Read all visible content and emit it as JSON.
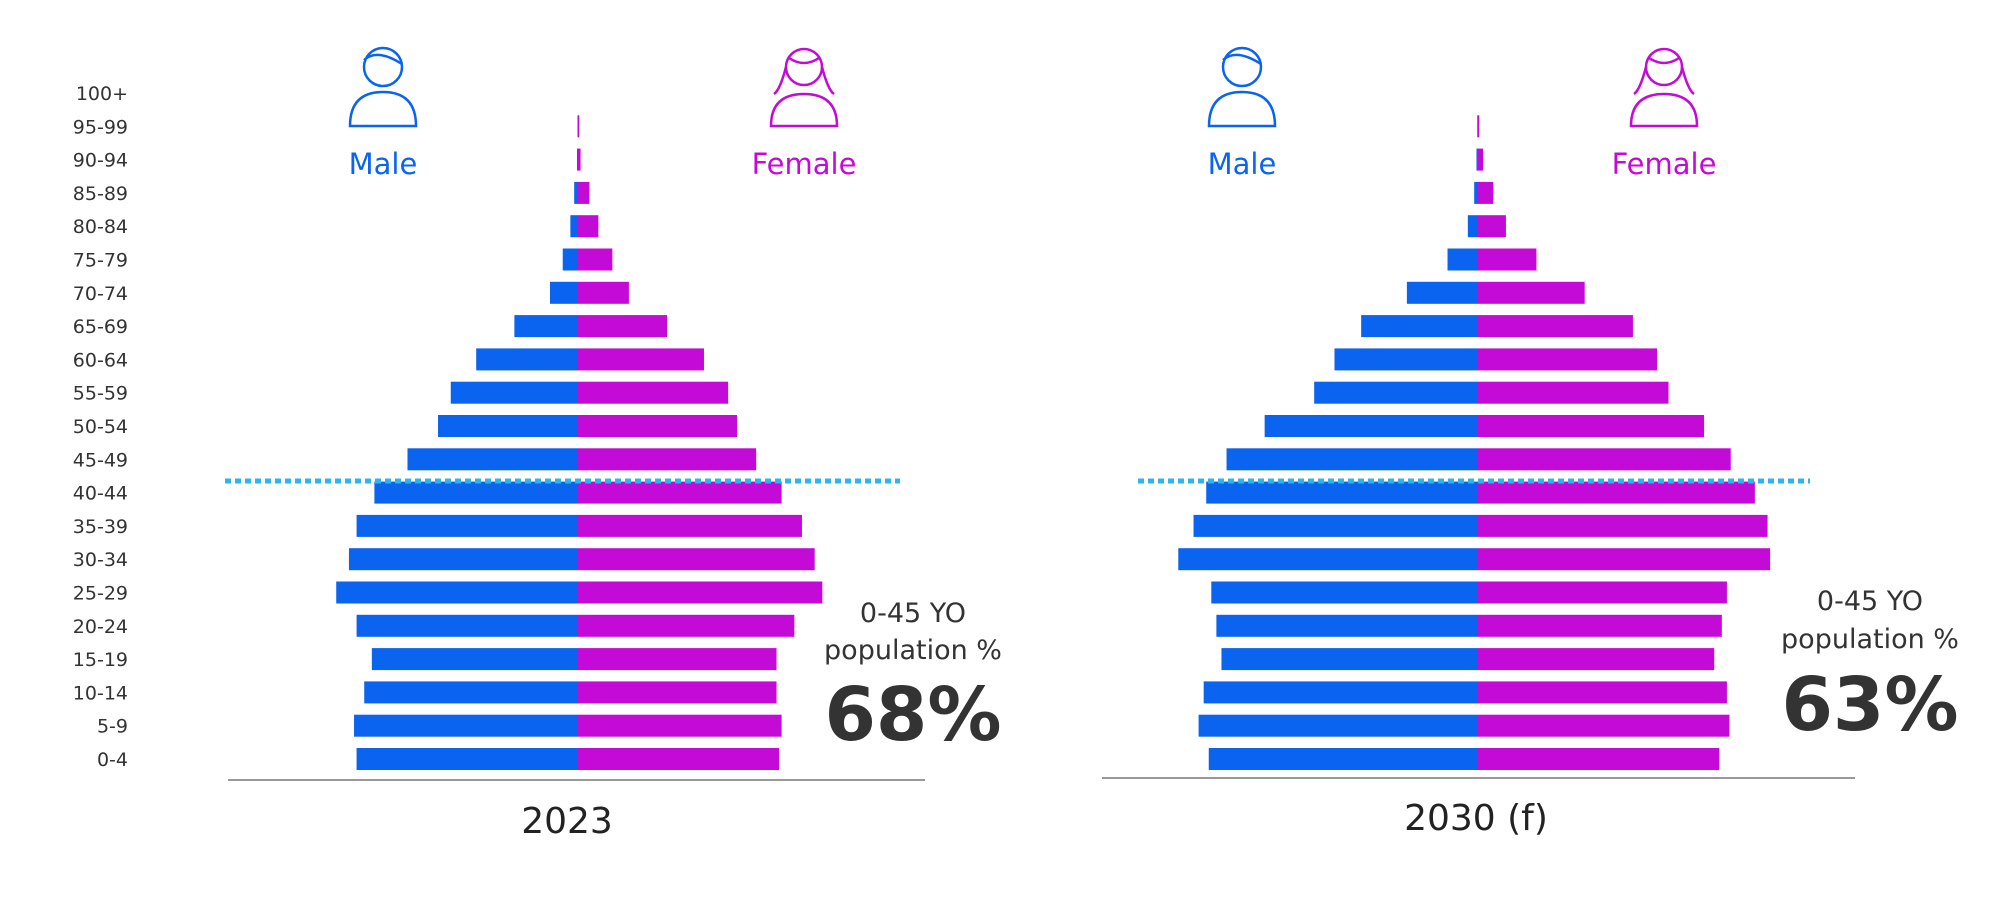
{
  "colors": {
    "male": "#0a64f0",
    "female": "#c40ad6",
    "cutoff_line": "#2bb6ee",
    "baseline": "#999999",
    "text": "#333333"
  },
  "age_groups": [
    "100+",
    "95-99",
    "90-94",
    "85-89",
    "80-84",
    "75-79",
    "70-74",
    "65-69",
    "60-64",
    "55-59",
    "50-54",
    "45-49",
    "40-44",
    "35-39",
    "30-34",
    "25-29",
    "20-24",
    "15-19",
    "10-14",
    "5-9",
    "0-4"
  ],
  "legend": {
    "male": "Male",
    "female": "Female"
  },
  "chart_data": [
    {
      "type": "bar",
      "subtype": "population-pyramid",
      "title": "2023",
      "categories": [
        "100+",
        "95-99",
        "90-94",
        "85-89",
        "80-84",
        "75-79",
        "70-74",
        "65-69",
        "60-64",
        "55-59",
        "50-54",
        "45-49",
        "40-44",
        "35-39",
        "30-34",
        "25-29",
        "20-24",
        "15-19",
        "10-14",
        "5-9",
        "0-4"
      ],
      "series": [
        {
          "name": "Male",
          "values": [
            0,
            0.2,
            0.4,
            1.5,
            3,
            6,
            11,
            25,
            40,
            50,
            55,
            67,
            80,
            87,
            90,
            95,
            87,
            81,
            84,
            88,
            87
          ]
        },
        {
          "name": "Female",
          "values": [
            0,
            0.5,
            1,
            4.5,
            8,
            13.5,
            20,
            35,
            49.5,
            59,
            62.5,
            70,
            80,
            88,
            93,
            96,
            85,
            78,
            78,
            80,
            79
          ]
        }
      ],
      "reference_line": {
        "age_group": "40-44"
      },
      "annotation": {
        "line1": "0-45 YO",
        "line2": "population %",
        "value": "68%"
      },
      "xlim": [
        -100,
        100
      ]
    },
    {
      "type": "bar",
      "subtype": "population-pyramid",
      "title": "2030 (f)",
      "categories": [
        "100+",
        "95-99",
        "90-94",
        "85-89",
        "80-84",
        "75-79",
        "70-74",
        "65-69",
        "60-64",
        "55-59",
        "50-54",
        "45-49",
        "40-44",
        "35-39",
        "30-34",
        "25-29",
        "20-24",
        "15-19",
        "10-14",
        "5-9",
        "0-4"
      ],
      "series": [
        {
          "name": "Male",
          "values": [
            0,
            0.3,
            0.6,
            1.5,
            4,
            12,
            28,
            46,
            56.5,
            64.5,
            84,
            99,
            107,
            112,
            118,
            105,
            103,
            101,
            108,
            110,
            106
          ]
        },
        {
          "name": "Female",
          "values": [
            0,
            0.5,
            2,
            6,
            11,
            23,
            42,
            61,
            70.5,
            75,
            89,
            99.5,
            109,
            114,
            115,
            98,
            96,
            93,
            98,
            99,
            95
          ]
        }
      ],
      "reference_line": {
        "age_group": "40-44"
      },
      "annotation": {
        "line1": "0-45 YO",
        "line2": "population %",
        "value": "63%"
      },
      "xlim": [
        -120,
        120
      ]
    }
  ]
}
